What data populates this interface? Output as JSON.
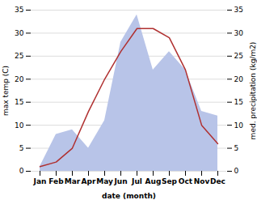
{
  "chart_data": {
    "type": "line",
    "categories": [
      "Jan",
      "Feb",
      "Mar",
      "Apr",
      "May",
      "Jun",
      "Jul",
      "Aug",
      "Sep",
      "Oct",
      "Nov",
      "Dec"
    ],
    "series": [
      {
        "type": "area",
        "color": "#b8c4e8",
        "axis": "y2",
        "values": [
          1,
          8,
          9,
          5,
          11,
          28,
          34,
          22,
          26,
          22,
          13,
          12
        ]
      },
      {
        "type": "line",
        "color": "#b03030",
        "values": [
          1,
          2,
          5,
          13,
          20,
          26,
          31,
          31,
          29,
          22,
          10,
          6
        ]
      }
    ],
    "xlabel": "date (month)",
    "ylabel": "max temp (C)",
    "y2label": "med. precipitation (kg/m2)",
    "ylim": [
      0,
      35
    ],
    "yticks": [
      0,
      5,
      10,
      15,
      20,
      25,
      30,
      35
    ],
    "y2lim": [
      0,
      35
    ],
    "y2ticks": [
      0,
      5,
      10,
      15,
      20,
      25,
      30,
      35
    ],
    "grid": true
  }
}
